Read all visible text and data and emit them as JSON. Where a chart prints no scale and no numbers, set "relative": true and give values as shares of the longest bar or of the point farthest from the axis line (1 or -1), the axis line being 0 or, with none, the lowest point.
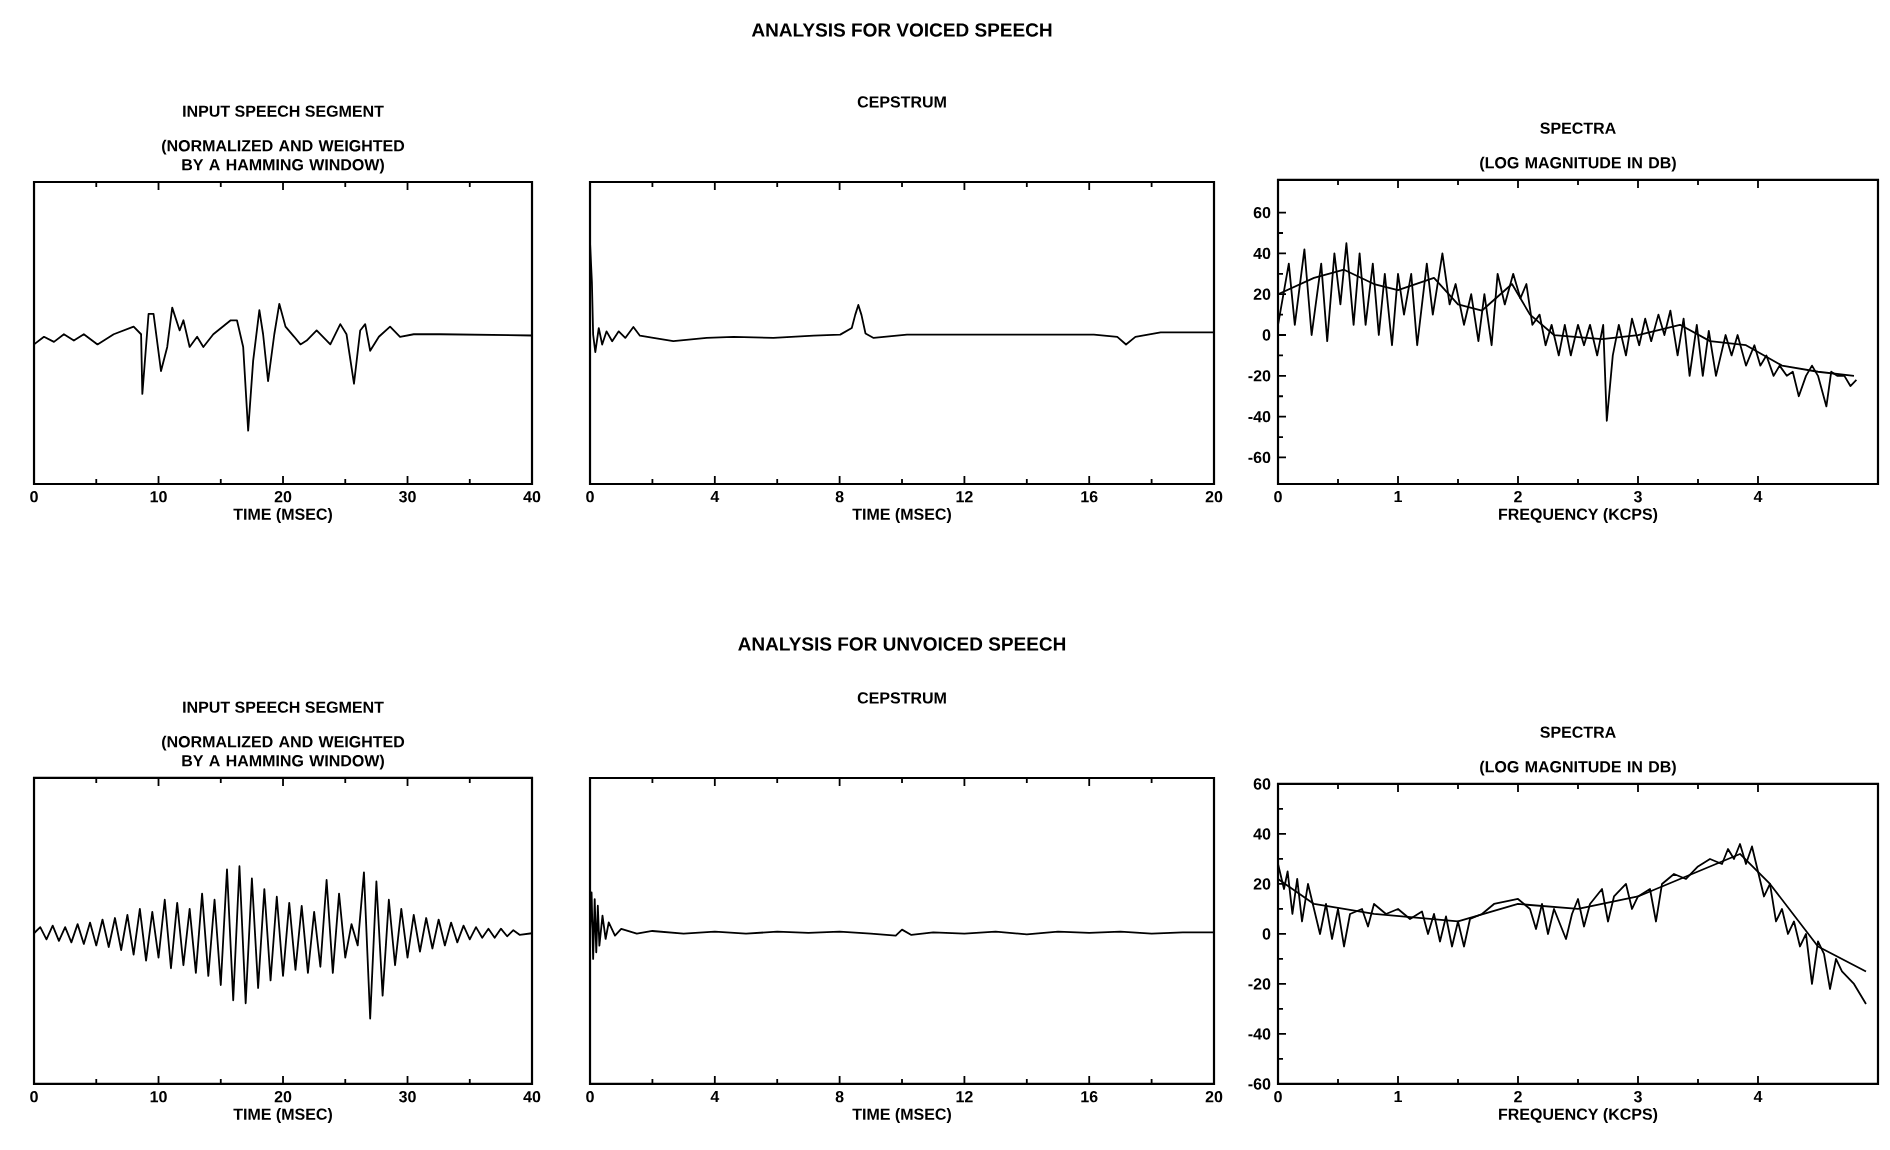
{
  "chart_data": [
    {
      "type": "line",
      "title": "INPUT SPEECH SEGMENT",
      "subtitle": "(NORMALIZED AND WEIGHTED BY A HAMMING WINDOW)",
      "xlabel": "TIME (MSEC)",
      "xlim": [
        0,
        40
      ],
      "xticks": [
        0,
        10,
        20,
        30,
        40
      ],
      "relative": true,
      "series": [
        {
          "color": "#000000",
          "x": [
            0,
            0.8,
            1.6,
            2.4,
            3.2,
            4.0,
            5.1,
            6.4,
            8.0,
            8.6,
            8.7,
            9.2,
            9.6,
            10.2,
            10.7,
            11.1,
            11.7,
            12.0,
            12.5,
            13.1,
            13.6,
            14.4,
            15.8,
            16.3,
            16.8,
            17.2,
            17.6,
            18.1,
            18.4,
            18.8,
            19.3,
            19.7,
            20.2,
            20.9,
            21.4,
            21.9,
            22.7,
            23.8,
            24.6,
            25.1,
            25.7,
            26.2,
            26.6,
            27.0,
            27.7,
            28.6,
            29.4,
            30.5,
            32.6,
            40
          ],
          "values": [
            0.68,
            0.74,
            0.7,
            0.76,
            0.71,
            0.76,
            0.68,
            0.76,
            0.82,
            0.76,
            0.29,
            0.92,
            0.92,
            0.47,
            0.66,
            0.97,
            0.79,
            0.87,
            0.66,
            0.74,
            0.66,
            0.76,
            0.87,
            0.87,
            0.66,
            0.0,
            0.55,
            0.95,
            0.76,
            0.39,
            0.76,
            1.0,
            0.82,
            0.74,
            0.68,
            0.71,
            0.79,
            0.68,
            0.84,
            0.76,
            0.37,
            0.79,
            0.84,
            0.63,
            0.74,
            0.82,
            0.74,
            0.76,
            0.76,
            0.75
          ]
        }
      ]
    },
    {
      "type": "line",
      "title": "CEPSTRUM",
      "xlabel": "TIME (MSEC)",
      "xlim": [
        0,
        20
      ],
      "xticks": [
        0,
        4,
        8,
        12,
        16,
        20
      ],
      "relative": true,
      "annotations": [
        "ANALYSIS FOR VOICED SPEECH"
      ],
      "series": [
        {
          "color": "#000000",
          "x": [
            0,
            0.06,
            0.1,
            0.17,
            0.28,
            0.39,
            0.53,
            0.71,
            0.92,
            1.13,
            1.39,
            1.6,
            2.03,
            2.67,
            3.74,
            4.6,
            5.88,
            7.17,
            8.02,
            8.39,
            8.5,
            8.6,
            8.7,
            8.83,
            9.09,
            10.16,
            11.87,
            14.01,
            16.15,
            16.9,
            17.18,
            17.48,
            18.29,
            20
          ],
          "values": [
            1.0,
            0.64,
            0.16,
            0.0,
            0.22,
            0.07,
            0.19,
            0.1,
            0.19,
            0.13,
            0.23,
            0.15,
            0.13,
            0.1,
            0.13,
            0.14,
            0.13,
            0.15,
            0.16,
            0.22,
            0.34,
            0.43,
            0.34,
            0.17,
            0.13,
            0.16,
            0.16,
            0.16,
            0.16,
            0.14,
            0.07,
            0.14,
            0.18,
            0.18
          ]
        }
      ]
    },
    {
      "type": "line",
      "title": "SPECTRA",
      "subtitle": "(LOG MAGNITUDE IN DB)",
      "xlabel": "FREQUENCY (KCPS)",
      "xlim": [
        0,
        5
      ],
      "xticks": [
        0,
        1,
        2,
        3,
        4
      ],
      "ylim": [
        -73,
        76
      ],
      "yticks": [
        -60,
        -40,
        -20,
        0,
        20,
        40,
        60
      ],
      "series": [
        {
          "color": "#000000",
          "x": [
            0,
            0.09,
            0.14,
            0.22,
            0.28,
            0.36,
            0.41,
            0.47,
            0.52,
            0.57,
            0.63,
            0.68,
            0.73,
            0.79,
            0.84,
            0.89,
            0.95,
            1.0,
            1.05,
            1.11,
            1.16,
            1.24,
            1.29,
            1.37,
            1.43,
            1.48,
            1.55,
            1.61,
            1.67,
            1.72,
            1.78,
            1.83,
            1.89,
            1.96,
            2.02,
            2.07,
            2.12,
            2.18,
            2.23,
            2.28,
            2.34,
            2.39,
            2.44,
            2.5,
            2.55,
            2.6,
            2.66,
            2.71,
            2.74,
            2.79,
            2.84,
            2.9,
            2.95,
            3.01,
            3.06,
            3.11,
            3.17,
            3.22,
            3.27,
            3.33,
            3.38,
            3.43,
            3.49,
            3.54,
            3.59,
            3.65,
            3.73,
            3.78,
            3.83,
            3.9,
            3.97,
            4.02,
            4.07,
            4.13,
            4.18,
            4.24,
            4.29,
            4.34,
            4.4,
            4.45,
            4.5,
            4.57,
            4.61,
            4.66,
            4.72,
            4.77,
            4.82
          ],
          "values": [
            5,
            35,
            5,
            42,
            0,
            35,
            -3,
            40,
            15,
            45,
            5,
            40,
            5,
            35,
            0,
            30,
            -5,
            30,
            10,
            30,
            -5,
            35,
            10,
            40,
            15,
            25,
            5,
            20,
            -3,
            20,
            -5,
            30,
            15,
            30,
            18,
            25,
            5,
            10,
            -5,
            5,
            -10,
            5,
            -10,
            5,
            -5,
            5,
            -10,
            5,
            -42,
            -10,
            5,
            -10,
            8,
            -5,
            8,
            -3,
            10,
            0,
            12,
            -10,
            8,
            -20,
            5,
            -20,
            2,
            -20,
            0,
            -10,
            0,
            -15,
            -5,
            -15,
            -10,
            -20,
            -15,
            -20,
            -18,
            -30,
            -20,
            -15,
            -20,
            -35,
            -18,
            -20,
            -20,
            -25,
            -22
          ]
        },
        {
          "color": "#000000",
          "x": [
            0,
            0.3,
            0.55,
            0.8,
            1.0,
            1.3,
            1.5,
            1.7,
            1.95,
            2.1,
            2.3,
            2.7,
            3.0,
            3.35,
            3.6,
            3.9,
            4.2,
            4.5,
            4.8
          ],
          "values": [
            20,
            28,
            32,
            25,
            22,
            28,
            15,
            12,
            25,
            10,
            0,
            -2,
            0,
            5,
            -3,
            -5,
            -15,
            -18,
            -20
          ]
        }
      ]
    },
    {
      "type": "line",
      "title": "INPUT SPEECH SEGMENT",
      "subtitle": "(NORMALIZED AND WEIGHTED BY A HAMMING WINDOW)",
      "xlabel": "TIME (MSEC)",
      "xlim": [
        0,
        40
      ],
      "xticks": [
        0,
        10,
        20,
        30,
        40
      ],
      "relative": true,
      "series": [
        {
          "color": "#000000",
          "x": [
            0,
            0.5,
            1.0,
            1.5,
            2.0,
            2.5,
            3.0,
            3.5,
            4.0,
            4.5,
            5.0,
            5.5,
            6.0,
            6.5,
            7.0,
            7.5,
            8.0,
            8.5,
            9.0,
            9.5,
            10.0,
            10.5,
            11.0,
            11.5,
            12.0,
            12.5,
            13.0,
            13.5,
            14.0,
            14.5,
            15.0,
            15.5,
            16.0,
            16.5,
            17.0,
            17.5,
            18.0,
            18.5,
            19.0,
            19.5,
            20.0,
            20.5,
            21.0,
            21.5,
            22.0,
            22.5,
            23.0,
            23.5,
            24.0,
            24.5,
            25.0,
            25.5,
            26.0,
            26.5,
            27.0,
            27.5,
            28.0,
            28.5,
            29.0,
            29.5,
            30.0,
            30.5,
            31.0,
            31.5,
            32.0,
            32.5,
            33.0,
            33.5,
            34.0,
            34.5,
            35.0,
            35.5,
            36.0,
            36.5,
            37.0,
            37.5,
            38.0,
            38.5,
            39.0,
            40
          ],
          "values": [
            0.56,
            0.6,
            0.52,
            0.61,
            0.51,
            0.6,
            0.5,
            0.62,
            0.49,
            0.63,
            0.48,
            0.65,
            0.47,
            0.66,
            0.45,
            0.68,
            0.42,
            0.72,
            0.38,
            0.7,
            0.4,
            0.78,
            0.33,
            0.76,
            0.35,
            0.72,
            0.3,
            0.82,
            0.28,
            0.78,
            0.22,
            0.98,
            0.12,
            1.0,
            0.1,
            0.92,
            0.2,
            0.85,
            0.25,
            0.8,
            0.28,
            0.76,
            0.32,
            0.74,
            0.3,
            0.7,
            0.34,
            0.91,
            0.3,
            0.82,
            0.4,
            0.62,
            0.48,
            0.96,
            0.0,
            0.9,
            0.15,
            0.78,
            0.35,
            0.72,
            0.4,
            0.68,
            0.44,
            0.66,
            0.46,
            0.65,
            0.48,
            0.63,
            0.5,
            0.61,
            0.52,
            0.6,
            0.53,
            0.59,
            0.53,
            0.59,
            0.54,
            0.58,
            0.55,
            0.56
          ]
        }
      ]
    },
    {
      "type": "line",
      "title": "CEPSTRUM",
      "xlabel": "TIME (MSEC)",
      "xlim": [
        0,
        20
      ],
      "xticks": [
        0,
        4,
        8,
        12,
        16,
        20
      ],
      "relative": true,
      "annotations": [
        "ANALYSIS FOR UNVOICED SPEECH"
      ],
      "series": [
        {
          "color": "#000000",
          "x": [
            0,
            0.05,
            0.1,
            0.15,
            0.2,
            0.25,
            0.3,
            0.4,
            0.5,
            0.6,
            0.8,
            1.0,
            1.5,
            2,
            3,
            4,
            5,
            6,
            7,
            8,
            9,
            9.8,
            10,
            10.3,
            11,
            12,
            13,
            14,
            15,
            16,
            17,
            18,
            19,
            20
          ],
          "values": [
            0.4,
            1.0,
            0.0,
            0.9,
            0.1,
            0.8,
            0.2,
            0.65,
            0.3,
            0.55,
            0.35,
            0.45,
            0.38,
            0.42,
            0.38,
            0.41,
            0.38,
            0.41,
            0.39,
            0.41,
            0.38,
            0.35,
            0.44,
            0.36,
            0.4,
            0.38,
            0.41,
            0.37,
            0.41,
            0.39,
            0.41,
            0.38,
            0.4,
            0.4
          ]
        }
      ]
    },
    {
      "type": "line",
      "title": "SPECTRA",
      "subtitle": "(LOG MAGNITUDE IN DB)",
      "xlabel": "FREQUENCY (KCPS)",
      "xlim": [
        0,
        5
      ],
      "xticks": [
        0,
        1,
        2,
        3,
        4
      ],
      "ylim": [
        -60,
        60
      ],
      "yticks": [
        -60,
        -40,
        -20,
        0,
        20,
        40,
        60
      ],
      "series": [
        {
          "color": "#000000",
          "x": [
            0,
            0.05,
            0.08,
            0.12,
            0.16,
            0.2,
            0.25,
            0.3,
            0.35,
            0.4,
            0.45,
            0.5,
            0.55,
            0.6,
            0.7,
            0.75,
            0.8,
            0.9,
            1.0,
            1.1,
            1.2,
            1.25,
            1.3,
            1.35,
            1.4,
            1.45,
            1.5,
            1.55,
            1.6,
            1.7,
            1.8,
            1.9,
            2.0,
            2.1,
            2.15,
            2.2,
            2.25,
            2.3,
            2.4,
            2.45,
            2.5,
            2.55,
            2.6,
            2.7,
            2.75,
            2.8,
            2.9,
            2.95,
            3.0,
            3.1,
            3.15,
            3.2,
            3.3,
            3.4,
            3.5,
            3.6,
            3.7,
            3.75,
            3.8,
            3.85,
            3.9,
            3.95,
            4.0,
            4.05,
            4.1,
            4.15,
            4.2,
            4.25,
            4.3,
            4.35,
            4.4,
            4.45,
            4.5,
            4.55,
            4.6,
            4.65,
            4.7,
            4.8,
            4.9
          ],
          "values": [
            28,
            18,
            25,
            8,
            22,
            5,
            20,
            10,
            0,
            12,
            -2,
            10,
            -5,
            8,
            10,
            3,
            12,
            8,
            10,
            6,
            9,
            0,
            8,
            -3,
            7,
            -5,
            5,
            -5,
            6,
            8,
            12,
            13,
            14,
            10,
            2,
            12,
            0,
            10,
            -2,
            8,
            14,
            3,
            12,
            18,
            5,
            15,
            20,
            10,
            15,
            18,
            5,
            20,
            24,
            22,
            27,
            30,
            28,
            34,
            30,
            36,
            28,
            35,
            25,
            15,
            20,
            5,
            10,
            0,
            5,
            -5,
            0,
            -20,
            -3,
            -8,
            -22,
            -10,
            -15,
            -20,
            -28
          ]
        },
        {
          "color": "#000000",
          "x": [
            0,
            0.3,
            0.8,
            1.5,
            2.0,
            2.5,
            3.0,
            3.5,
            3.85,
            4.1,
            4.5,
            4.9
          ],
          "values": [
            22,
            12,
            8,
            5,
            12,
            10,
            15,
            25,
            32,
            20,
            -5,
            -15
          ]
        }
      ]
    }
  ]
}
